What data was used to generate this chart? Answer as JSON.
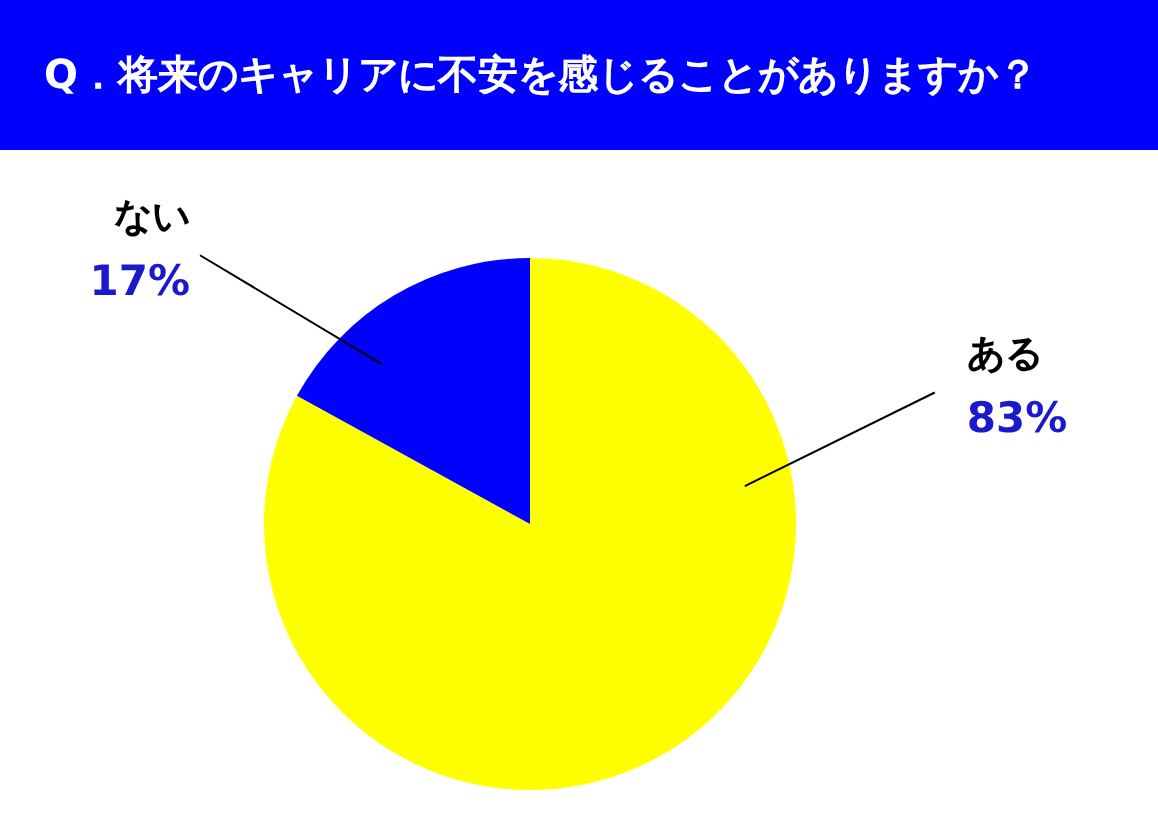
{
  "chart_data": {
    "type": "pie",
    "title": "Q．将来のキャリアに不安を感じることがありますか？",
    "categories": [
      "ある",
      "ない"
    ],
    "values": [
      83,
      17
    ],
    "colors": [
      "#ffff00",
      "#0000ff"
    ],
    "value_labels": [
      "83%",
      "17%"
    ]
  }
}
